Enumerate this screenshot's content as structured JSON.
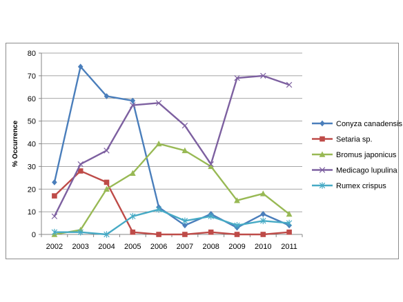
{
  "chart_data": {
    "type": "line",
    "title": "",
    "xlabel": "",
    "ylabel": "% Occurrence",
    "ylim": [
      0,
      80
    ],
    "yticks": [
      0,
      10,
      20,
      30,
      40,
      50,
      60,
      70,
      80
    ],
    "categories": [
      "2002",
      "2003",
      "2004",
      "2005",
      "2006",
      "2007",
      "2008",
      "2009",
      "2010",
      "2011"
    ],
    "grid": "horizontal",
    "legend_position": "right",
    "series": [
      {
        "name": "Conyza canadensis",
        "color": "#4a7ebb",
        "marker": "diamond",
        "values": [
          23,
          74,
          61,
          59,
          12,
          4,
          9,
          3,
          9,
          4
        ]
      },
      {
        "name": "Setaria sp.",
        "color": "#be4b48",
        "marker": "square",
        "values": [
          17,
          28,
          23,
          1,
          0,
          0,
          1,
          0,
          0,
          1
        ]
      },
      {
        "name": "Bromus japonicus",
        "color": "#98b954",
        "marker": "triangle",
        "values": [
          0,
          2,
          20,
          27,
          40,
          37,
          30,
          15,
          18,
          9
        ]
      },
      {
        "name": "Medicago lupulina",
        "color": "#7d60a0",
        "marker": "x",
        "values": [
          8,
          31,
          37,
          57,
          58,
          48,
          31,
          69,
          70,
          66
        ]
      },
      {
        "name": "Rumex crispus",
        "color": "#46aac5",
        "marker": "star",
        "values": [
          1,
          1,
          0,
          8,
          11,
          6,
          8,
          4,
          6,
          5
        ]
      }
    ]
  }
}
